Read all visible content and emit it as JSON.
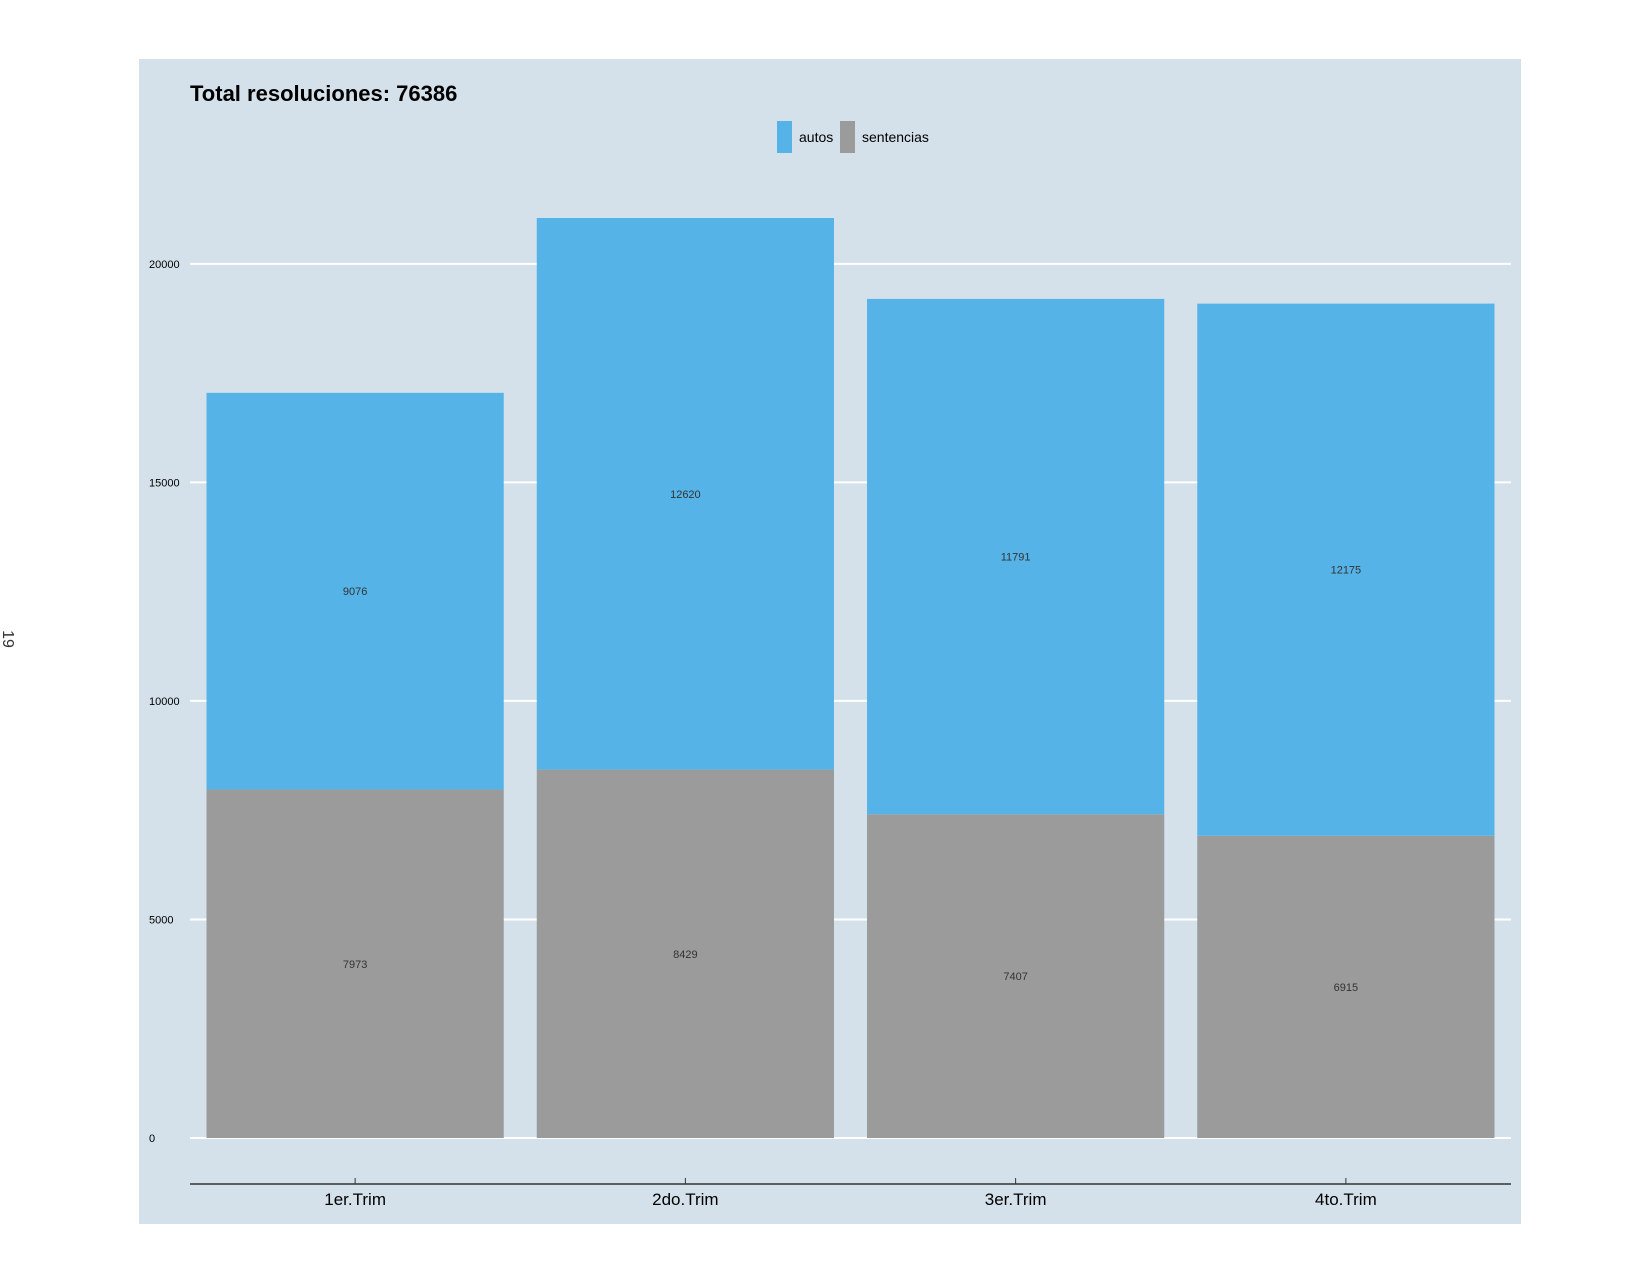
{
  "page": {
    "number": "19"
  },
  "colors": {
    "panel": "#d4e1ea",
    "autos": "#55b3e8",
    "sentencias": "#9b9b9b",
    "grid": "#ffffff"
  },
  "chart_data": {
    "type": "bar",
    "stacked": true,
    "title": "Total resoluciones: 76386",
    "xlabel": "",
    "ylabel": "",
    "categories": [
      "1er.Trim",
      "2do.Trim",
      "3er.Trim",
      "4to.Trim"
    ],
    "series": [
      {
        "name": "sentencias",
        "values": [
          7973,
          8429,
          7407,
          6915
        ],
        "labels": [
          "7973",
          "8429",
          "7407",
          "6915"
        ]
      },
      {
        "name": "autos",
        "values": [
          9076,
          12620,
          11791,
          12175
        ],
        "labels": [
          "9076",
          "12620",
          "11791",
          "12175"
        ]
      }
    ],
    "legend": {
      "position": "top-center",
      "items": [
        "autos",
        "sentencias"
      ]
    },
    "yticks": [
      "0",
      "5000",
      "10000",
      "15000",
      "20000"
    ],
    "ylim": [
      0,
      21049
    ],
    "grid": true
  }
}
